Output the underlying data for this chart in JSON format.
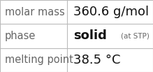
{
  "rows": [
    {
      "label": "molar mass",
      "value_parts": [
        {
          "text": "360.6 g/mol",
          "size": 13,
          "weight": "normal",
          "color": "value"
        }
      ]
    },
    {
      "label": "phase",
      "value_parts": [
        {
          "text": "solid",
          "size": 13,
          "weight": "bold",
          "color": "value"
        },
        {
          "text": "(at STP)",
          "size": 7.5,
          "weight": "normal",
          "color": "label"
        }
      ]
    },
    {
      "label": "melting point",
      "value_parts": [
        {
          "text": "38.5 °C",
          "size": 13,
          "weight": "normal",
          "color": "value"
        }
      ]
    }
  ],
  "col_split": 0.44,
  "background": "#ffffff",
  "border_color": "#bbbbbb",
  "label_color": "#666666",
  "value_color": "#111111",
  "label_fontsize": 10.5
}
